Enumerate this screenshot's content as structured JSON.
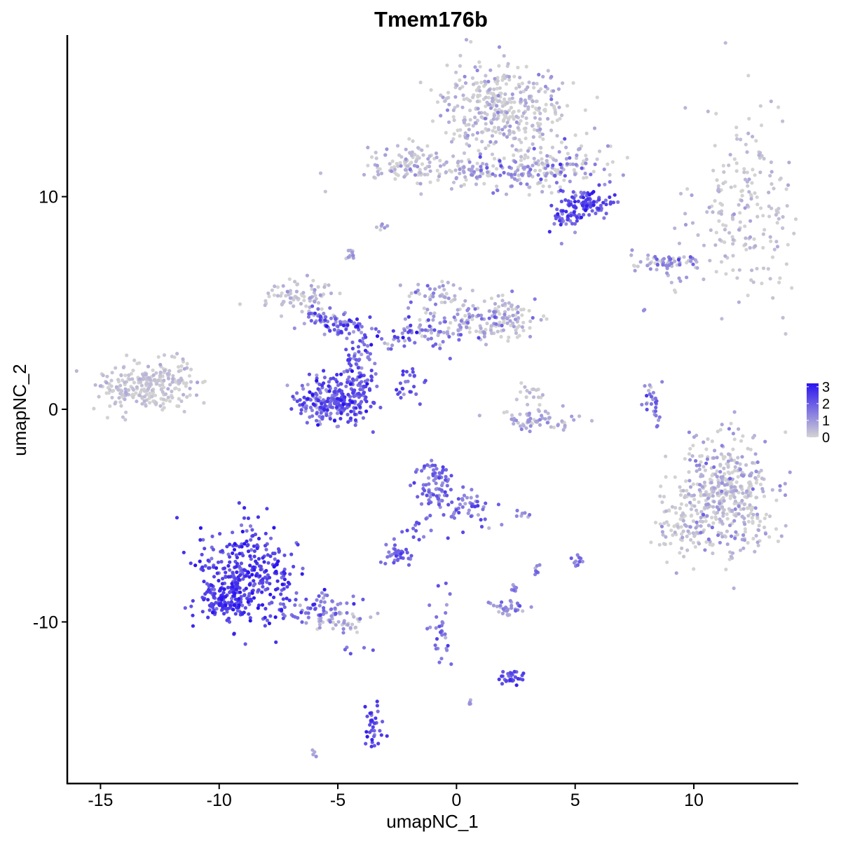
{
  "chart_data": {
    "type": "scatter",
    "title": "Tmem176b",
    "xlabel": "umapNC_1",
    "ylabel": "umapNC_2",
    "xlim": [
      -16.4,
      14.4
    ],
    "ylim": [
      -17.6,
      17.6
    ],
    "x_ticks": [
      {
        "value": -15,
        "label": "-15"
      },
      {
        "value": -10,
        "label": "-10"
      },
      {
        "value": -5,
        "label": "-5"
      },
      {
        "value": 0,
        "label": "0"
      },
      {
        "value": 5,
        "label": "5"
      },
      {
        "value": 10,
        "label": "10"
      }
    ],
    "y_ticks": [
      {
        "value": 10,
        "label": "10"
      },
      {
        "value": 0,
        "label": "0"
      },
      {
        "value": -10,
        "label": "-10"
      }
    ],
    "grid": false,
    "legend_position": "right",
    "colorbar": {
      "min": 0,
      "max": 3.2,
      "low_color": "#d3d3d3",
      "high_color": "#2a14f0",
      "ticks": [
        {
          "value": 3,
          "label": "3"
        },
        {
          "value": 2,
          "label": "2"
        },
        {
          "value": 1,
          "label": "1"
        },
        {
          "value": 0,
          "label": "0"
        }
      ]
    },
    "clusters": [
      {
        "x": 12.3,
        "y": 9.5,
        "sx": 1.1,
        "sy": 2.4,
        "n": 200,
        "expr": 0.2,
        "expr_spread": 0.3
      },
      {
        "x": 2.0,
        "y": 14.2,
        "sx": 1.3,
        "sy": 1.1,
        "n": 380,
        "expr": 0.2,
        "expr_spread": 0.5
      },
      {
        "x": 3.6,
        "y": 11.3,
        "sx": 1.4,
        "sy": 0.6,
        "n": 190,
        "expr": 0.5,
        "expr_spread": 0.8
      },
      {
        "x": 5.5,
        "y": 9.7,
        "sx": 0.5,
        "sy": 0.35,
        "n": 90,
        "expr": 2.3,
        "expr_spread": 0.5
      },
      {
        "x": 4.6,
        "y": 9.0,
        "sx": 0.35,
        "sy": 0.4,
        "n": 40,
        "expr": 2.0,
        "expr_spread": 0.5
      },
      {
        "x": -2.0,
        "y": 11.5,
        "sx": 0.9,
        "sy": 0.45,
        "n": 110,
        "expr": 0.3,
        "expr_spread": 0.5
      },
      {
        "x": 0.6,
        "y": 11.1,
        "sx": 1.0,
        "sy": 0.3,
        "n": 60,
        "expr": 0.4,
        "expr_spread": 0.6
      },
      {
        "x": 8.8,
        "y": 6.9,
        "sx": 0.8,
        "sy": 0.22,
        "n": 70,
        "expr": 0.8,
        "expr_spread": 0.7
      },
      {
        "x": -13.3,
        "y": 1.0,
        "sx": 1.0,
        "sy": 0.6,
        "n": 220,
        "expr": 0.1,
        "expr_spread": 0.3
      },
      {
        "x": -12.0,
        "y": 1.8,
        "sx": 0.5,
        "sy": 0.5,
        "n": 40,
        "expr": 0.2,
        "expr_spread": 0.4
      },
      {
        "x": -6.7,
        "y": 5.3,
        "sx": 0.8,
        "sy": 0.35,
        "n": 80,
        "expr": 0.2,
        "expr_spread": 0.4
      },
      {
        "x": -5.5,
        "y": 4.2,
        "sx": 0.6,
        "sy": 0.3,
        "n": 50,
        "expr": 1.6,
        "expr_spread": 0.7
      },
      {
        "x": -4.4,
        "y": 3.9,
        "sx": 0.5,
        "sy": 0.35,
        "n": 40,
        "expr": 2.0,
        "expr_spread": 0.6
      },
      {
        "x": -5.9,
        "y": 0.3,
        "sx": 0.5,
        "sy": 0.55,
        "n": 110,
        "expr": 1.8,
        "expr_spread": 0.6
      },
      {
        "x": -4.6,
        "y": 0.5,
        "sx": 0.55,
        "sy": 0.6,
        "n": 170,
        "expr": 2.0,
        "expr_spread": 0.6
      },
      {
        "x": -4.1,
        "y": 2.2,
        "sx": 0.35,
        "sy": 0.6,
        "n": 60,
        "expr": 1.9,
        "expr_spread": 0.6
      },
      {
        "x": -1.5,
        "y": 3.5,
        "sx": 1.2,
        "sy": 0.4,
        "n": 70,
        "expr": 1.5,
        "expr_spread": 0.8
      },
      {
        "x": 0.7,
        "y": 4.2,
        "sx": 1.3,
        "sy": 0.45,
        "n": 110,
        "expr": 0.5,
        "expr_spread": 0.7
      },
      {
        "x": 1.9,
        "y": 4.3,
        "sx": 0.8,
        "sy": 0.45,
        "n": 60,
        "expr": 0.2,
        "expr_spread": 0.4
      },
      {
        "x": -0.8,
        "y": 5.5,
        "sx": 0.6,
        "sy": 0.35,
        "n": 40,
        "expr": 0.6,
        "expr_spread": 0.6
      },
      {
        "x": -2.0,
        "y": 1.2,
        "sx": 0.3,
        "sy": 0.4,
        "n": 25,
        "expr": 2.0,
        "expr_spread": 0.4
      },
      {
        "x": 3.5,
        "y": -0.5,
        "sx": 0.9,
        "sy": 0.25,
        "n": 60,
        "expr": 0.6,
        "expr_spread": 0.4
      },
      {
        "x": 3.2,
        "y": 0.5,
        "sx": 0.3,
        "sy": 0.5,
        "n": 20,
        "expr": 0.2,
        "expr_spread": 0.4
      },
      {
        "x": 8.3,
        "y": 0.5,
        "sx": 0.2,
        "sy": 0.6,
        "n": 30,
        "expr": 1.3,
        "expr_spread": 0.5
      },
      {
        "x": 11.3,
        "y": -4.0,
        "sx": 1.0,
        "sy": 1.3,
        "n": 450,
        "expr": 0.3,
        "expr_spread": 0.6
      },
      {
        "x": 9.3,
        "y": -5.5,
        "sx": 0.5,
        "sy": 0.6,
        "n": 70,
        "expr": 0.2,
        "expr_spread": 0.4
      },
      {
        "x": -8.8,
        "y": -7.8,
        "sx": 1.0,
        "sy": 1.1,
        "n": 330,
        "expr": 2.4,
        "expr_spread": 0.5
      },
      {
        "x": -9.8,
        "y": -9.0,
        "sx": 0.5,
        "sy": 0.5,
        "n": 100,
        "expr": 2.5,
        "expr_spread": 0.4
      },
      {
        "x": -6.0,
        "y": -9.3,
        "sx": 0.9,
        "sy": 0.35,
        "n": 70,
        "expr": 1.6,
        "expr_spread": 0.6
      },
      {
        "x": -4.8,
        "y": -10.0,
        "sx": 0.6,
        "sy": 0.25,
        "n": 40,
        "expr": 0.5,
        "expr_spread": 0.5
      },
      {
        "x": -1.0,
        "y": -3.5,
        "sx": 0.4,
        "sy": 0.55,
        "n": 70,
        "expr": 1.6,
        "expr_spread": 0.5
      },
      {
        "x": 0.5,
        "y": -4.6,
        "sx": 0.7,
        "sy": 0.4,
        "n": 60,
        "expr": 1.6,
        "expr_spread": 0.5
      },
      {
        "x": -2.4,
        "y": -6.8,
        "sx": 0.3,
        "sy": 0.25,
        "n": 40,
        "expr": 1.8,
        "expr_spread": 0.4
      },
      {
        "x": -1.6,
        "y": -5.8,
        "sx": 0.4,
        "sy": 0.5,
        "n": 15,
        "expr": 1.8,
        "expr_spread": 0.4
      },
      {
        "x": 2.2,
        "y": -9.4,
        "sx": 0.35,
        "sy": 0.22,
        "n": 35,
        "expr": 1.0,
        "expr_spread": 0.5
      },
      {
        "x": 2.3,
        "y": -12.6,
        "sx": 0.3,
        "sy": 0.2,
        "n": 30,
        "expr": 2.2,
        "expr_spread": 0.4
      },
      {
        "x": -0.6,
        "y": -10.5,
        "sx": 0.25,
        "sy": 0.9,
        "n": 30,
        "expr": 1.6,
        "expr_spread": 0.5
      },
      {
        "x": -3.5,
        "y": -14.9,
        "sx": 0.25,
        "sy": 0.5,
        "n": 35,
        "expr": 2.3,
        "expr_spread": 0.4
      },
      {
        "x": 5.1,
        "y": -7.4,
        "sx": 0.12,
        "sy": 0.25,
        "n": 12,
        "expr": 1.5,
        "expr_spread": 0.4
      },
      {
        "x": 3.4,
        "y": -7.6,
        "sx": 0.08,
        "sy": 0.2,
        "n": 8,
        "expr": 1.6,
        "expr_spread": 0.4
      },
      {
        "x": 2.4,
        "y": -8.6,
        "sx": 0.1,
        "sy": 0.15,
        "n": 6,
        "expr": 1.2,
        "expr_spread": 0.4
      },
      {
        "x": -4.5,
        "y": 7.2,
        "sx": 0.12,
        "sy": 0.2,
        "n": 10,
        "expr": 0.5,
        "expr_spread": 0.5
      },
      {
        "x": -3.2,
        "y": 8.6,
        "sx": 0.1,
        "sy": 0.1,
        "n": 6,
        "expr": 0.5,
        "expr_spread": 0.5
      },
      {
        "x": 2.9,
        "y": -5.0,
        "sx": 0.2,
        "sy": 0.08,
        "n": 6,
        "expr": 0.9,
        "expr_spread": 0.4
      },
      {
        "x": 0.5,
        "y": -13.9,
        "sx": 0.1,
        "sy": 0.1,
        "n": 4,
        "expr": 1.0,
        "expr_spread": 0.3
      },
      {
        "x": -6.0,
        "y": -16.2,
        "sx": 0.1,
        "sy": 0.08,
        "n": 4,
        "expr": 0.8,
        "expr_spread": 0.3
      },
      {
        "x": 7.9,
        "y": 4.7,
        "sx": 0.05,
        "sy": 0.05,
        "n": 2,
        "expr": 1.2,
        "expr_spread": 0.3
      },
      {
        "x": 9.2,
        "y": 6.0,
        "sx": 0.3,
        "sy": 0.25,
        "n": 8,
        "expr": 0.4,
        "expr_spread": 0.4
      },
      {
        "x": -4.2,
        "y": -11.3,
        "sx": 0.3,
        "sy": 0.1,
        "n": 5,
        "expr": 1.8,
        "expr_spread": 0.4
      }
    ]
  }
}
